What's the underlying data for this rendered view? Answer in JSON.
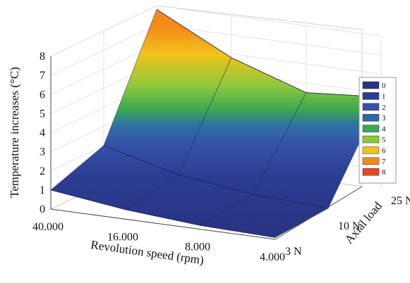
{
  "chart_data": {
    "type": "surface3d",
    "title": "",
    "xlabel": "Revolution speed (rpm)",
    "ylabel": "Axial load",
    "zlabel": "Temperature increases (°C)",
    "x_ticks": [
      "40.000",
      "16.000",
      "8.000",
      "4.000"
    ],
    "y_ticks": [
      "3 N",
      "10 N",
      "25 N"
    ],
    "z_ticks": [
      "0",
      "1",
      "2",
      "3",
      "4",
      "5",
      "6",
      "7",
      "8"
    ],
    "zlim": [
      0,
      8
    ],
    "grid": true,
    "legend_position": "right",
    "legend": {
      "items": [
        "0",
        "1",
        "2",
        "3",
        "4",
        "5",
        "6",
        "7",
        "8"
      ],
      "colors": [
        "#283583",
        "#2c3d94",
        "#3a50a8",
        "#2b6aa6",
        "#3aa852",
        "#8cc83c",
        "#f2c21c",
        "#f28a1a",
        "#e8461e"
      ]
    },
    "x": [
      "40.000",
      "16.000",
      "8.000",
      "4.000"
    ],
    "y": [
      "3 N",
      "10 N",
      "25 N"
    ],
    "z": [
      [
        1.0,
        0.5,
        0.2,
        0.1
      ],
      [
        2.0,
        1.0,
        0.5,
        0.3
      ],
      [
        7.8,
        5.8,
        4.5,
        4.8
      ]
    ]
  }
}
